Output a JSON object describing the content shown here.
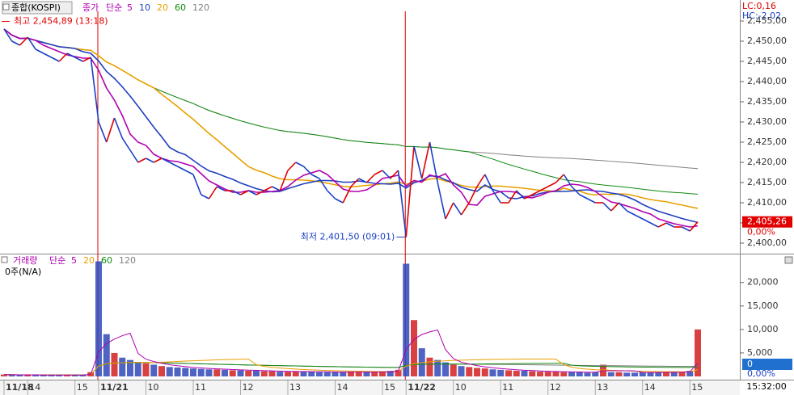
{
  "header": {
    "symbol": "종합(KOSPI)",
    "lc": "LC:0,16",
    "hc": "HC:-2,02",
    "time": "15:32:00"
  },
  "chart_data": [
    {
      "type": "line",
      "indicator": "종가",
      "method": "단순",
      "categories": [
        "11/18",
        null,
        null,
        "14",
        null,
        null,
        null,
        null,
        null,
        "15",
        null,
        null,
        "11/21",
        null,
        null,
        null,
        null,
        null,
        "10",
        null,
        null,
        null,
        null,
        null,
        "11",
        null,
        null,
        null,
        null,
        null,
        "12",
        null,
        null,
        null,
        null,
        null,
        "13",
        null,
        null,
        null,
        null,
        null,
        "14",
        null,
        null,
        null,
        null,
        null,
        "15",
        null,
        null,
        "11/22",
        null,
        null,
        null,
        null,
        null,
        "10",
        null,
        null,
        null,
        null,
        null,
        "11",
        null,
        null,
        null,
        null,
        null,
        "12",
        null,
        null,
        null,
        null,
        null,
        "13",
        null,
        null,
        null,
        null,
        null,
        "14",
        null,
        null,
        null,
        null,
        null,
        "15",
        null
      ],
      "series": [
        {
          "name": "종가",
          "up_color": "#e00000",
          "down_color": "#1a3fc4",
          "values": [
            2453,
            2450,
            2449,
            2451,
            2448,
            2447,
            2446,
            2445,
            2447,
            2446,
            2445,
            2446,
            2430,
            2425,
            2431,
            2426,
            2423,
            2420,
            2421,
            2420,
            2421,
            2420,
            2419,
            2418,
            2417,
            2412,
            2411,
            2414,
            2413,
            2413,
            2412,
            2413,
            2412,
            2413,
            2414,
            2413,
            2418,
            2420,
            2419,
            2417,
            2416,
            2413,
            2411,
            2410,
            2414,
            2416,
            2415,
            2417,
            2418,
            2416,
            2418,
            2401.5,
            2424,
            2416,
            2425,
            2415,
            2406,
            2410,
            2407,
            2410,
            2414,
            2417,
            2413,
            2410,
            2410,
            2413,
            2411,
            2412,
            2413,
            2414,
            2415,
            2417,
            2414,
            2412,
            2411,
            2410,
            2410,
            2408,
            2410,
            2408,
            2407,
            2406,
            2405,
            2404,
            2405,
            2404,
            2404,
            2403,
            2405.26
          ]
        }
      ],
      "ma": [
        {
          "period": 5,
          "color": "#b000b0"
        },
        {
          "period": 10,
          "color": "#1f3fbf"
        },
        {
          "period": 20,
          "color": "#e8a000"
        },
        {
          "period": 60,
          "color": "#108a10"
        },
        {
          "period": 120,
          "color": "#808080"
        }
      ],
      "ylim": [
        2397.8,
        2457.4
      ],
      "yticks": [
        {
          "value": 2400,
          "label": "2,400,00"
        },
        {
          "value": 2405,
          "label": "2,405,00"
        },
        {
          "value": 2410,
          "label": "2,410,00"
        },
        {
          "value": 2415,
          "label": "2,415,00"
        },
        {
          "value": 2420,
          "label": "2,420,00"
        },
        {
          "value": 2425,
          "label": "2,425,00"
        },
        {
          "value": 2430,
          "label": "2,430,00"
        },
        {
          "value": 2435,
          "label": "2,435,00"
        },
        {
          "value": 2440,
          "label": "2,440,00"
        },
        {
          "value": 2445,
          "label": "2,445,00"
        },
        {
          "value": 2450,
          "label": "2,450,00"
        },
        {
          "value": 2455,
          "label": "2,455,00"
        }
      ],
      "high": {
        "value": 2454.89,
        "label": "최고 2,454,89 (13:18)"
      },
      "low": {
        "value": 2401.5,
        "label": "최저 2,401,50 (09:01)"
      },
      "current": {
        "value": 2405.26,
        "label": "2,405,26",
        "change": "0,00%"
      }
    },
    {
      "type": "bar",
      "indicator": "거래량",
      "method": "단순",
      "summary": "0주(N/A)",
      "values": [
        400,
        350,
        300,
        320,
        300,
        280,
        300,
        310,
        290,
        300,
        320,
        900,
        24500,
        9000,
        5000,
        4000,
        3500,
        3000,
        2800,
        2500,
        2200,
        2000,
        1900,
        1800,
        1700,
        1600,
        1500,
        1500,
        1400,
        1300,
        1300,
        1200,
        1200,
        1100,
        1100,
        1000,
        1000,
        1100,
        1000,
        1000,
        900,
        900,
        900,
        900,
        1000,
        900,
        900,
        900,
        1000,
        1200,
        1400,
        24000,
        12000,
        6000,
        4000,
        3500,
        3000,
        2500,
        2200,
        2000,
        1800,
        1700,
        1500,
        1400,
        1300,
        1200,
        1200,
        1100,
        1000,
        1000,
        1000,
        900,
        900,
        900,
        800,
        900,
        2500,
        900,
        900,
        800,
        800,
        900,
        800,
        900,
        900,
        900,
        1000,
        1200,
        10000
      ],
      "ma": [
        {
          "period": 5,
          "color": "#b000b0"
        },
        {
          "period": 20,
          "color": "#e8a000"
        },
        {
          "period": 60,
          "color": "#108a10"
        },
        {
          "period": 120,
          "color": "#808080"
        }
      ],
      "ylim": [
        0,
        25800
      ],
      "yticks": [
        {
          "value": 5000,
          "label": "5,000"
        },
        {
          "value": 10000,
          "label": "10,000"
        },
        {
          "value": 15000,
          "label": "15,000"
        },
        {
          "value": 20000,
          "label": "20,000"
        }
      ],
      "current": {
        "value": 0,
        "label": "0",
        "change": "0,00%"
      }
    }
  ]
}
